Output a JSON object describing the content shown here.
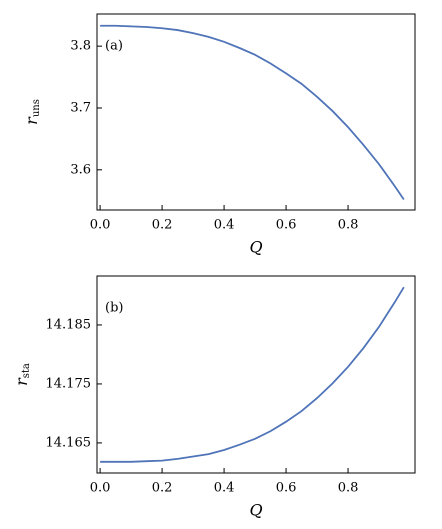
{
  "chart_data": [
    {
      "type": "line",
      "annotation": "(a)",
      "xlabel": "Q",
      "ylabel": "r",
      "ylabel_sub": "uns",
      "x": [
        0,
        0.05,
        0.1,
        0.15,
        0.2,
        0.25,
        0.3,
        0.35,
        0.4,
        0.45,
        0.5,
        0.55,
        0.6,
        0.65,
        0.7,
        0.75,
        0.8,
        0.85,
        0.9,
        0.95,
        0.98
      ],
      "series": [
        {
          "color": "#4f74b8",
          "values": [
            3.833,
            3.833,
            3.832,
            3.831,
            3.829,
            3.826,
            3.821,
            3.815,
            3.807,
            3.797,
            3.786,
            3.772,
            3.756,
            3.739,
            3.718,
            3.695,
            3.669,
            3.64,
            3.609,
            3.574,
            3.552
          ]
        }
      ],
      "xlim": [
        -0.01,
        1.016
      ],
      "ylim": [
        3.535,
        3.852
      ],
      "xticks": [
        {
          "value": 0,
          "label": "0.0"
        },
        0.2,
        0.4,
        0.6,
        0.8
      ],
      "yticks": [
        3.6,
        3.7,
        3.8
      ]
    },
    {
      "type": "line",
      "annotation": "(b)",
      "xlabel": "Q",
      "ylabel": "r",
      "ylabel_sub": "sta",
      "x": [
        0,
        0.05,
        0.1,
        0.15,
        0.2,
        0.25,
        0.3,
        0.35,
        0.4,
        0.45,
        0.5,
        0.55,
        0.6,
        0.65,
        0.7,
        0.75,
        0.8,
        0.85,
        0.9,
        0.95,
        0.98
      ],
      "series": [
        {
          "color": "#4f74b8",
          "values": [
            14.1618,
            14.1618,
            14.1618,
            14.1619,
            14.162,
            14.1623,
            14.1627,
            14.1631,
            14.1638,
            14.1647,
            14.1657,
            14.167,
            14.1686,
            14.1704,
            14.1726,
            14.1751,
            14.1779,
            14.1811,
            14.1847,
            14.1888,
            14.1914
          ]
        }
      ],
      "xlim": [
        -0.01,
        1.016
      ],
      "ylim": [
        14.1599,
        14.1933
      ],
      "xticks": [
        {
          "value": 0,
          "label": "0.0"
        },
        0.2,
        0.4,
        0.6,
        0.8
      ],
      "yticks": [
        14.165,
        14.175,
        14.185
      ]
    }
  ]
}
